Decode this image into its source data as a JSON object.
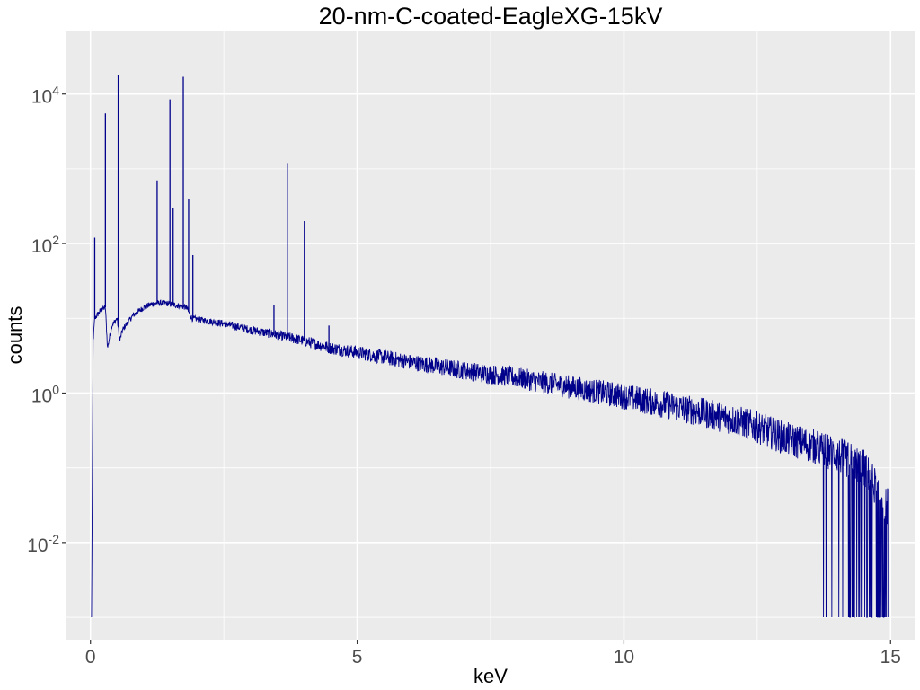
{
  "chart_data": {
    "type": "line",
    "title": "20-nm-C-coated-EagleXG-15kV",
    "xlabel": "keV",
    "ylabel": "counts",
    "x_scale": "linear",
    "y_scale": "log10",
    "xlim": [
      -0.45,
      15.45
    ],
    "ylim_log10": [
      -3.3,
      4.85
    ],
    "x_ticks": [
      0,
      5,
      10,
      15
    ],
    "x_tick_labels": [
      "0",
      "5",
      "10",
      "15"
    ],
    "y_ticks_log10": [
      -2,
      0,
      2,
      4
    ],
    "y_tick_base": "10",
    "y_tick_exponents": [
      "-2",
      "0",
      "2",
      "4"
    ],
    "grid": true,
    "legend": "none",
    "line_color": "#00008b",
    "panel_background": "#ebebeb",
    "series": [
      {
        "continuum": [
          [
            0.02,
            0.001
          ],
          [
            0.05,
            5
          ],
          [
            0.08,
            10
          ],
          [
            0.2,
            13
          ],
          [
            0.28,
            14
          ],
          [
            0.32,
            4
          ],
          [
            0.4,
            8
          ],
          [
            0.5,
            10
          ],
          [
            0.55,
            5
          ],
          [
            0.6,
            7
          ],
          [
            0.8,
            11
          ],
          [
            1.0,
            14
          ],
          [
            1.2,
            16
          ],
          [
            1.4,
            16
          ],
          [
            1.6,
            15
          ],
          [
            1.8,
            14
          ],
          [
            1.9,
            10
          ],
          [
            2.5,
            8.5
          ],
          [
            3.0,
            7
          ],
          [
            3.5,
            6
          ],
          [
            4.0,
            5
          ],
          [
            4.5,
            4
          ],
          [
            5.0,
            3.5
          ],
          [
            6.0,
            2.6
          ],
          [
            7.0,
            2.0
          ],
          [
            8.0,
            1.6
          ],
          [
            9.0,
            1.2
          ],
          [
            10.0,
            0.9
          ],
          [
            11.0,
            0.65
          ],
          [
            12.0,
            0.45
          ],
          [
            12.5,
            0.35
          ],
          [
            13.0,
            0.25
          ],
          [
            13.5,
            0.2
          ],
          [
            14.0,
            0.15
          ],
          [
            14.5,
            0.1
          ],
          [
            14.95,
            0.03
          ]
        ],
        "peaks": [
          {
            "x": 0.08,
            "y": 120
          },
          {
            "x": 0.28,
            "y": 5500
          },
          {
            "x": 0.52,
            "y": 18000
          },
          {
            "x": 1.25,
            "y": 700
          },
          {
            "x": 1.49,
            "y": 8500
          },
          {
            "x": 1.55,
            "y": 300
          },
          {
            "x": 1.74,
            "y": 17000
          },
          {
            "x": 1.84,
            "y": 400
          },
          {
            "x": 1.92,
            "y": 70
          },
          {
            "x": 3.44,
            "y": 15
          },
          {
            "x": 3.69,
            "y": 1200
          },
          {
            "x": 4.01,
            "y": 200
          },
          {
            "x": 4.47,
            "y": 8
          }
        ]
      }
    ]
  }
}
